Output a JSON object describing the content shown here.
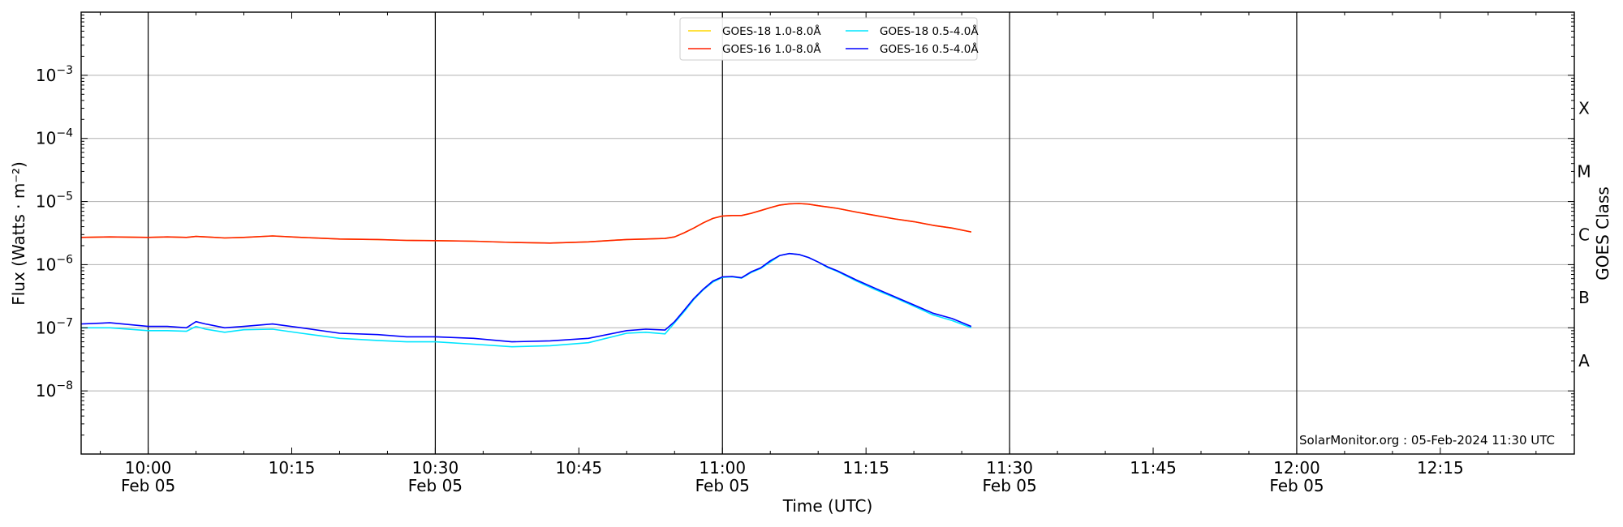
{
  "chart_data": {
    "type": "line",
    "title": "",
    "xlabel": "Time (UTC)",
    "ylabel": "Flux (Watts · m⁻²)",
    "ylabel_right": "GOES Class",
    "y_scale": "log",
    "ylim": [
      1e-09,
      0.01
    ],
    "xlim": [
      "2024-02-05 09:53",
      "2024-02-05 12:29"
    ],
    "grid": "horizontal at decades",
    "legend_position": "top-center",
    "x_ticks": [
      {
        "t": "2024-02-05 10:00",
        "label": "10:00",
        "sublabel": "Feb 05"
      },
      {
        "t": "2024-02-05 10:15",
        "label": "10:15",
        "sublabel": ""
      },
      {
        "t": "2024-02-05 10:30",
        "label": "10:30",
        "sublabel": "Feb 05"
      },
      {
        "t": "2024-02-05 10:45",
        "label": "10:45",
        "sublabel": ""
      },
      {
        "t": "2024-02-05 11:00",
        "label": "11:00",
        "sublabel": "Feb 05"
      },
      {
        "t": "2024-02-05 11:15",
        "label": "11:15",
        "sublabel": ""
      },
      {
        "t": "2024-02-05 11:30",
        "label": "11:30",
        "sublabel": "Feb 05"
      },
      {
        "t": "2024-02-05 11:45",
        "label": "11:45",
        "sublabel": ""
      },
      {
        "t": "2024-02-05 12:00",
        "label": "12:00",
        "sublabel": "Feb 05"
      },
      {
        "t": "2024-02-05 12:15",
        "label": "12:15",
        "sublabel": ""
      }
    ],
    "vertical_lines": [
      "2024-02-05 10:00",
      "2024-02-05 10:30",
      "2024-02-05 11:00",
      "2024-02-05 11:30",
      "2024-02-05 12:00"
    ],
    "y_ticks": [
      {
        "value": 1e-08,
        "base": "10",
        "exp": "−8"
      },
      {
        "value": 1e-07,
        "base": "10",
        "exp": "−7"
      },
      {
        "value": 1e-06,
        "base": "10",
        "exp": "−6"
      },
      {
        "value": 1e-05,
        "base": "10",
        "exp": "−5"
      },
      {
        "value": 0.0001,
        "base": "10",
        "exp": "−4"
      },
      {
        "value": 0.001,
        "base": "10",
        "exp": "−3"
      }
    ],
    "goes_classes": [
      {
        "label": "A",
        "value": 3e-08
      },
      {
        "label": "B",
        "value": 3e-07
      },
      {
        "label": "C",
        "value": 3e-06
      },
      {
        "label": "M",
        "value": 3e-05
      },
      {
        "label": "X",
        "value": 0.0003
      }
    ],
    "legend": [
      {
        "label": "GOES-18 1.0-8.0Å",
        "color": "#ffd700"
      },
      {
        "label": "GOES-16 1.0-8.0Å",
        "color": "#ff2000"
      },
      {
        "label": "GOES-18 0.5-4.0Å",
        "color": "#00e5ff"
      },
      {
        "label": "GOES-16 0.5-4.0Å",
        "color": "#0000ff"
      }
    ],
    "x_times": [
      "09:53",
      "09:56",
      "10:00",
      "10:02",
      "10:04",
      "10:05",
      "10:06",
      "10:08",
      "10:10",
      "10:13",
      "10:16",
      "10:20",
      "10:24",
      "10:27",
      "10:30",
      "10:34",
      "10:38",
      "10:42",
      "10:46",
      "10:50",
      "10:52",
      "10:54",
      "10:55",
      "10:56",
      "10:57",
      "10:58",
      "10:59",
      "11:00",
      "11:01",
      "11:02",
      "11:03",
      "11:04",
      "11:05",
      "11:06",
      "11:07",
      "11:08",
      "11:09",
      "11:10",
      "11:11",
      "11:12",
      "11:14",
      "11:16",
      "11:18",
      "11:20",
      "11:22",
      "11:24",
      "11:26"
    ],
    "series": [
      {
        "name": "GOES-18 1.0-8.0Å",
        "color": "#ffd700",
        "values": [
          2.7e-06,
          2.75e-06,
          2.7e-06,
          2.75e-06,
          2.7e-06,
          2.8e-06,
          2.75e-06,
          2.65e-06,
          2.7e-06,
          2.85e-06,
          2.7e-06,
          2.55e-06,
          2.5e-06,
          2.42e-06,
          2.4e-06,
          2.35e-06,
          2.25e-06,
          2.2e-06,
          2.3e-06,
          2.5e-06,
          2.55e-06,
          2.6e-06,
          2.75e-06,
          3.2e-06,
          3.8e-06,
          4.6e-06,
          5.4e-06,
          5.9e-06,
          6e-06,
          6e-06,
          6.5e-06,
          7.2e-06,
          8e-06,
          8.8e-06,
          9.2e-06,
          9.3e-06,
          9.1e-06,
          8.6e-06,
          8.2e-06,
          7.8e-06,
          6.8e-06,
          6e-06,
          5.3e-06,
          4.8e-06,
          4.2e-06,
          3.8e-06,
          3.3e-06
        ]
      },
      {
        "name": "GOES-16 1.0-8.0Å",
        "color": "#ff2000",
        "values": [
          2.7e-06,
          2.75e-06,
          2.7e-06,
          2.75e-06,
          2.7e-06,
          2.8e-06,
          2.75e-06,
          2.65e-06,
          2.7e-06,
          2.85e-06,
          2.7e-06,
          2.55e-06,
          2.5e-06,
          2.42e-06,
          2.4e-06,
          2.35e-06,
          2.25e-06,
          2.2e-06,
          2.3e-06,
          2.5e-06,
          2.55e-06,
          2.6e-06,
          2.75e-06,
          3.2e-06,
          3.8e-06,
          4.6e-06,
          5.4e-06,
          5.9e-06,
          6e-06,
          6e-06,
          6.5e-06,
          7.2e-06,
          8e-06,
          8.8e-06,
          9.2e-06,
          9.3e-06,
          9.1e-06,
          8.6e-06,
          8.2e-06,
          7.8e-06,
          6.8e-06,
          6e-06,
          5.3e-06,
          4.8e-06,
          4.2e-06,
          3.8e-06,
          3.3e-06
        ]
      },
      {
        "name": "GOES-18 0.5-4.0Å",
        "color": "#00e5ff",
        "values": [
          1e-07,
          1e-07,
          9e-08,
          9e-08,
          8.8e-08,
          1.05e-07,
          9.5e-08,
          8.5e-08,
          9.3e-08,
          9.5e-08,
          8.2e-08,
          6.8e-08,
          6.3e-08,
          6e-08,
          6e-08,
          5.5e-08,
          5e-08,
          5.2e-08,
          5.8e-08,
          8.2e-08,
          8.5e-08,
          8e-08,
          1.2e-07,
          1.8e-07,
          2.8e-07,
          4e-07,
          5.3e-07,
          6.3e-07,
          6.4e-07,
          6.1e-07,
          7.5e-07,
          8.7e-07,
          1.1e-06,
          1.4e-06,
          1.5e-06,
          1.45e-06,
          1.3e-06,
          1.1e-06,
          9e-07,
          7.8e-07,
          5.5e-07,
          4e-07,
          3e-07,
          2.2e-07,
          1.6e-07,
          1.3e-07,
          1e-07
        ]
      },
      {
        "name": "GOES-16 0.5-4.0Å",
        "color": "#0000ff",
        "values": [
          1.15e-07,
          1.2e-07,
          1.05e-07,
          1.05e-07,
          1e-07,
          1.25e-07,
          1.15e-07,
          1e-07,
          1.05e-07,
          1.15e-07,
          1e-07,
          8.2e-08,
          7.8e-08,
          7.2e-08,
          7.2e-08,
          6.8e-08,
          6e-08,
          6.2e-08,
          6.8e-08,
          9e-08,
          9.5e-08,
          9.2e-08,
          1.25e-07,
          1.9e-07,
          2.9e-07,
          4.1e-07,
          5.5e-07,
          6.4e-07,
          6.5e-07,
          6.2e-07,
          7.7e-07,
          8.9e-07,
          1.15e-06,
          1.4e-06,
          1.5e-06,
          1.45e-06,
          1.3e-06,
          1.1e-06,
          9.2e-07,
          8e-07,
          5.7e-07,
          4.2e-07,
          3.1e-07,
          2.3e-07,
          1.7e-07,
          1.4e-07,
          1.05e-07
        ]
      }
    ],
    "footer": "SolarMonitor.org : 05-Feb-2024 11:30 UTC"
  }
}
